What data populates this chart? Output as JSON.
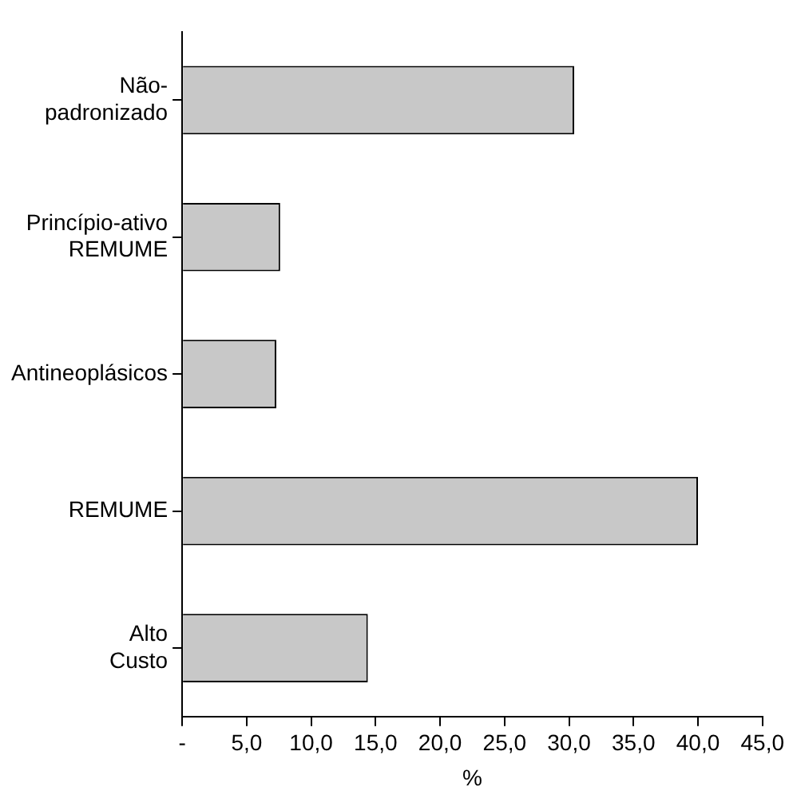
{
  "chart_data": {
    "type": "bar",
    "orientation": "horizontal",
    "categories": [
      "Não-padronizado",
      "Princípio-ativo REMUME",
      "Antineoplásicos",
      "REMUME",
      "Alto Custo"
    ],
    "values": [
      30.4,
      7.6,
      7.3,
      40.0,
      14.4
    ],
    "color": "#c8c8c8",
    "xlabel": "%",
    "xlim": [
      0,
      45
    ],
    "xticks": [
      {
        "value": 0,
        "label": "-"
      },
      {
        "value": 5,
        "label": "5,0"
      },
      {
        "value": 10,
        "label": "10,0"
      },
      {
        "value": 15,
        "label": "15,0"
      },
      {
        "value": 20,
        "label": "20,0"
      },
      {
        "value": 25,
        "label": "25,0"
      },
      {
        "value": 30,
        "label": "30,0"
      },
      {
        "value": 35,
        "label": "35,0"
      },
      {
        "value": 40,
        "label": "40,0"
      },
      {
        "value": 45,
        "label": "45,0"
      }
    ],
    "grid": false,
    "legend": false
  }
}
